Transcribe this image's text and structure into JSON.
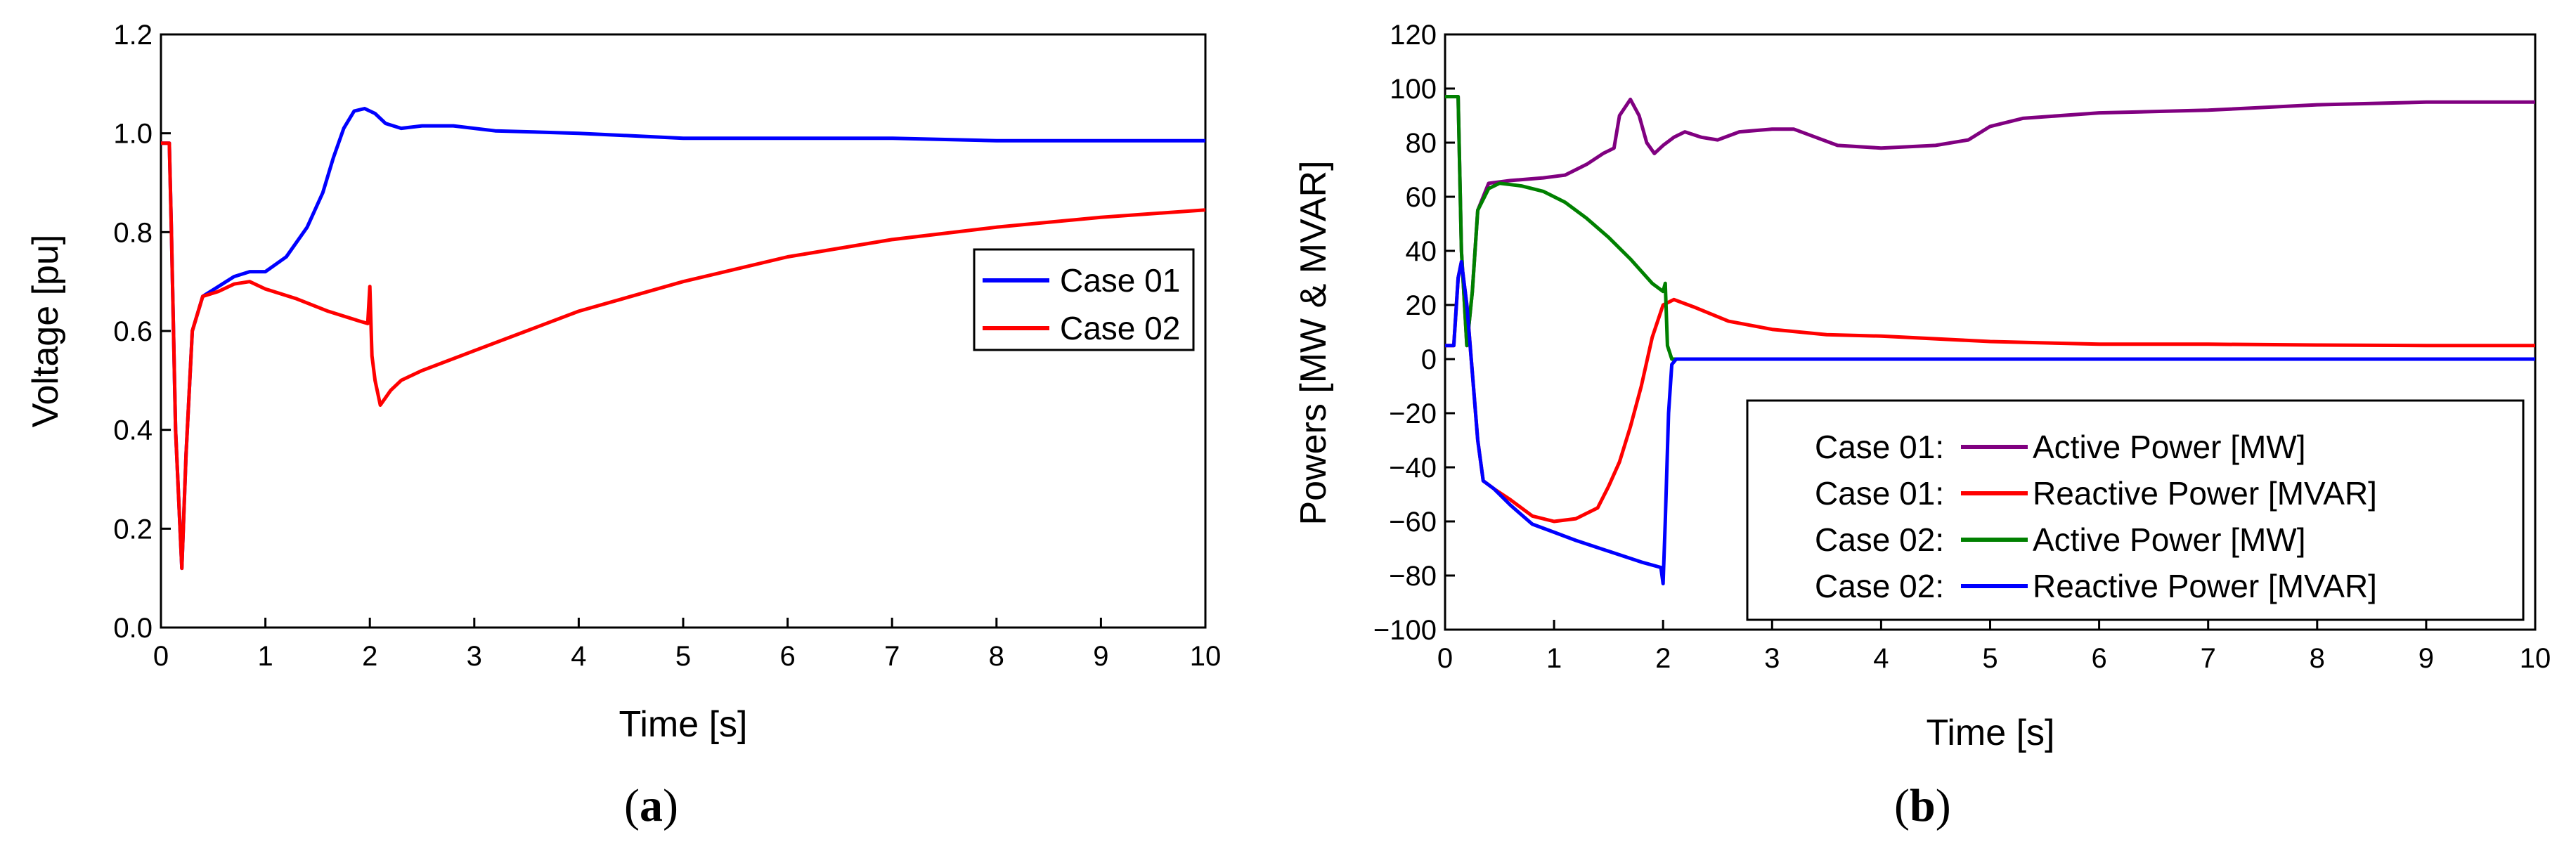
{
  "chart_data": [
    {
      "type": "line",
      "caption": {
        "open": "(",
        "letter": "a",
        "close": ")"
      },
      "xlabel": "Time [s]",
      "ylabel": "Voltage [pu]",
      "xlim": [
        0,
        10
      ],
      "ylim": [
        0,
        1.2
      ],
      "x_ticks": [
        0,
        1,
        2,
        3,
        4,
        5,
        6,
        7,
        8,
        9,
        10
      ],
      "y_ticks": [
        0.0,
        0.2,
        0.4,
        0.6,
        0.8,
        1.0,
        1.2
      ],
      "x_tick_labels": [
        "0",
        "1",
        "2",
        "3",
        "4",
        "5",
        "6",
        "7",
        "8",
        "9",
        "10"
      ],
      "y_tick_labels": [
        "0.0",
        "0.2",
        "0.4",
        "0.6",
        "0.8",
        "1.0",
        "1.2"
      ],
      "legend": {
        "placement": "right-middle",
        "entries": [
          "Case 01",
          "Case 02"
        ]
      },
      "series": [
        {
          "name": "Case 01",
          "color": "#0000ff",
          "points": [
            [
              0,
              0.98
            ],
            [
              0.08,
              0.98
            ],
            [
              0.1,
              0.8
            ],
            [
              0.14,
              0.4
            ],
            [
              0.2,
              0.12
            ],
            [
              0.24,
              0.35
            ],
            [
              0.3,
              0.6
            ],
            [
              0.4,
              0.67
            ],
            [
              0.55,
              0.69
            ],
            [
              0.7,
              0.71
            ],
            [
              0.85,
              0.72
            ],
            [
              1.0,
              0.72
            ],
            [
              1.2,
              0.75
            ],
            [
              1.4,
              0.81
            ],
            [
              1.55,
              0.88
            ],
            [
              1.65,
              0.95
            ],
            [
              1.75,
              1.01
            ],
            [
              1.85,
              1.045
            ],
            [
              1.95,
              1.05
            ],
            [
              2.05,
              1.04
            ],
            [
              2.15,
              1.02
            ],
            [
              2.3,
              1.01
            ],
            [
              2.5,
              1.015
            ],
            [
              2.8,
              1.015
            ],
            [
              3.2,
              1.005
            ],
            [
              4.0,
              1.0
            ],
            [
              5.0,
              0.99
            ],
            [
              6.0,
              0.99
            ],
            [
              7.0,
              0.99
            ],
            [
              8.0,
              0.985
            ],
            [
              9.0,
              0.985
            ],
            [
              10.0,
              0.985
            ]
          ]
        },
        {
          "name": "Case 02",
          "color": "#ff0000",
          "points": [
            [
              0,
              0.98
            ],
            [
              0.08,
              0.98
            ],
            [
              0.1,
              0.8
            ],
            [
              0.14,
              0.4
            ],
            [
              0.2,
              0.12
            ],
            [
              0.24,
              0.35
            ],
            [
              0.3,
              0.6
            ],
            [
              0.4,
              0.67
            ],
            [
              0.55,
              0.68
            ],
            [
              0.7,
              0.695
            ],
            [
              0.85,
              0.7
            ],
            [
              1.0,
              0.685
            ],
            [
              1.3,
              0.665
            ],
            [
              1.6,
              0.64
            ],
            [
              1.9,
              0.62
            ],
            [
              1.98,
              0.615
            ],
            [
              2.0,
              0.69
            ],
            [
              2.02,
              0.55
            ],
            [
              2.05,
              0.5
            ],
            [
              2.1,
              0.45
            ],
            [
              2.2,
              0.48
            ],
            [
              2.3,
              0.5
            ],
            [
              2.5,
              0.52
            ],
            [
              3.0,
              0.56
            ],
            [
              3.5,
              0.6
            ],
            [
              4.0,
              0.64
            ],
            [
              5.0,
              0.7
            ],
            [
              6.0,
              0.75
            ],
            [
              7.0,
              0.785
            ],
            [
              8.0,
              0.81
            ],
            [
              9.0,
              0.83
            ],
            [
              10.0,
              0.845
            ]
          ]
        }
      ]
    },
    {
      "type": "line",
      "caption": {
        "open": "(",
        "letter": "b",
        "close": ")"
      },
      "xlabel": "Time [s]",
      "ylabel": "Powers [MW & MVAR]",
      "xlim": [
        0,
        10
      ],
      "ylim": [
        -100,
        120
      ],
      "x_ticks": [
        0,
        1,
        2,
        3,
        4,
        5,
        6,
        7,
        8,
        9,
        10
      ],
      "y_ticks": [
        -100,
        -80,
        -60,
        -40,
        -20,
        0,
        20,
        40,
        60,
        80,
        100,
        120
      ],
      "x_tick_labels": [
        "0",
        "1",
        "2",
        "3",
        "4",
        "5",
        "6",
        "7",
        "8",
        "9",
        "10"
      ],
      "y_tick_labels": [
        "−100",
        "−80",
        "−60",
        "−40",
        "−20",
        "0",
        "20",
        "40",
        "60",
        "80",
        "100",
        "120"
      ],
      "legend": {
        "placement": "bottom-right",
        "entries": [
          {
            "case": "Case 01:",
            "label": "Active Power [MW]"
          },
          {
            "case": "Case 01:",
            "label": "Reactive Power [MVAR]"
          },
          {
            "case": "Case 02:",
            "label": "Active Power [MW]"
          },
          {
            "case": "Case 02:",
            "label": "Reactive Power [MVAR]"
          }
        ]
      },
      "series": [
        {
          "name": "Case 01: Active Power [MW]",
          "color": "#800080",
          "points": [
            [
              0,
              97
            ],
            [
              0.12,
              97
            ],
            [
              0.15,
              40
            ],
            [
              0.2,
              5
            ],
            [
              0.25,
              25
            ],
            [
              0.3,
              55
            ],
            [
              0.4,
              65
            ],
            [
              0.6,
              66
            ],
            [
              0.9,
              67
            ],
            [
              1.1,
              68
            ],
            [
              1.3,
              72
            ],
            [
              1.45,
              76
            ],
            [
              1.55,
              78
            ],
            [
              1.6,
              90
            ],
            [
              1.7,
              96
            ],
            [
              1.78,
              90
            ],
            [
              1.85,
              80
            ],
            [
              1.92,
              76
            ],
            [
              2.0,
              79
            ],
            [
              2.1,
              82
            ],
            [
              2.2,
              84
            ],
            [
              2.35,
              82
            ],
            [
              2.5,
              81
            ],
            [
              2.7,
              84
            ],
            [
              3.0,
              85
            ],
            [
              3.2,
              85
            ],
            [
              3.4,
              82
            ],
            [
              3.6,
              79
            ],
            [
              4.0,
              78
            ],
            [
              4.5,
              79
            ],
            [
              4.8,
              81
            ],
            [
              5.0,
              86
            ],
            [
              5.3,
              89
            ],
            [
              6.0,
              91
            ],
            [
              7.0,
              92
            ],
            [
              8.0,
              94
            ],
            [
              9.0,
              95
            ],
            [
              10.0,
              95
            ]
          ]
        },
        {
          "name": "Case 01: Reactive Power [MVAR]",
          "color": "#ff0000",
          "points": [
            [
              0,
              5
            ],
            [
              0.08,
              5
            ],
            [
              0.12,
              30
            ],
            [
              0.15,
              36
            ],
            [
              0.2,
              20
            ],
            [
              0.25,
              -5
            ],
            [
              0.3,
              -30
            ],
            [
              0.35,
              -45
            ],
            [
              0.45,
              -48
            ],
            [
              0.6,
              -52
            ],
            [
              0.8,
              -58
            ],
            [
              1.0,
              -60
            ],
            [
              1.2,
              -59
            ],
            [
              1.4,
              -55
            ],
            [
              1.5,
              -47
            ],
            [
              1.6,
              -38
            ],
            [
              1.7,
              -25
            ],
            [
              1.8,
              -10
            ],
            [
              1.9,
              8
            ],
            [
              2.0,
              20
            ],
            [
              2.1,
              22
            ],
            [
              2.3,
              19
            ],
            [
              2.6,
              14
            ],
            [
              3.0,
              11
            ],
            [
              3.5,
              9
            ],
            [
              4.0,
              8.5
            ],
            [
              5.0,
              6.5
            ],
            [
              6.0,
              5.5
            ],
            [
              7.0,
              5.5
            ],
            [
              8.0,
              5.2
            ],
            [
              9.0,
              5
            ],
            [
              10.0,
              5
            ]
          ]
        },
        {
          "name": "Case 02: Active Power [MW]",
          "color": "#008000",
          "points": [
            [
              0,
              97
            ],
            [
              0.12,
              97
            ],
            [
              0.15,
              40
            ],
            [
              0.2,
              5
            ],
            [
              0.25,
              25
            ],
            [
              0.3,
              55
            ],
            [
              0.4,
              63
            ],
            [
              0.5,
              65
            ],
            [
              0.7,
              64
            ],
            [
              0.9,
              62
            ],
            [
              1.1,
              58
            ],
            [
              1.3,
              52
            ],
            [
              1.5,
              45
            ],
            [
              1.7,
              37
            ],
            [
              1.9,
              28
            ],
            [
              2.0,
              25
            ],
            [
              2.02,
              28
            ],
            [
              2.04,
              5
            ],
            [
              2.08,
              0
            ],
            [
              2.2,
              0
            ]
          ]
        },
        {
          "name": "Case 02: Reactive Power [MVAR]",
          "color": "#0000ff",
          "points": [
            [
              0,
              5
            ],
            [
              0.08,
              5
            ],
            [
              0.12,
              30
            ],
            [
              0.15,
              36
            ],
            [
              0.2,
              20
            ],
            [
              0.25,
              -5
            ],
            [
              0.3,
              -30
            ],
            [
              0.35,
              -45
            ],
            [
              0.45,
              -48
            ],
            [
              0.6,
              -54
            ],
            [
              0.8,
              -61
            ],
            [
              1.0,
              -64
            ],
            [
              1.2,
              -67
            ],
            [
              1.5,
              -71
            ],
            [
              1.8,
              -75
            ],
            [
              1.98,
              -77
            ],
            [
              2.0,
              -83
            ],
            [
              2.02,
              -60
            ],
            [
              2.05,
              -20
            ],
            [
              2.08,
              -2
            ],
            [
              2.12,
              0
            ],
            [
              3.0,
              0
            ],
            [
              5.0,
              0
            ],
            [
              7.0,
              0
            ],
            [
              10.0,
              0
            ]
          ]
        }
      ]
    }
  ]
}
